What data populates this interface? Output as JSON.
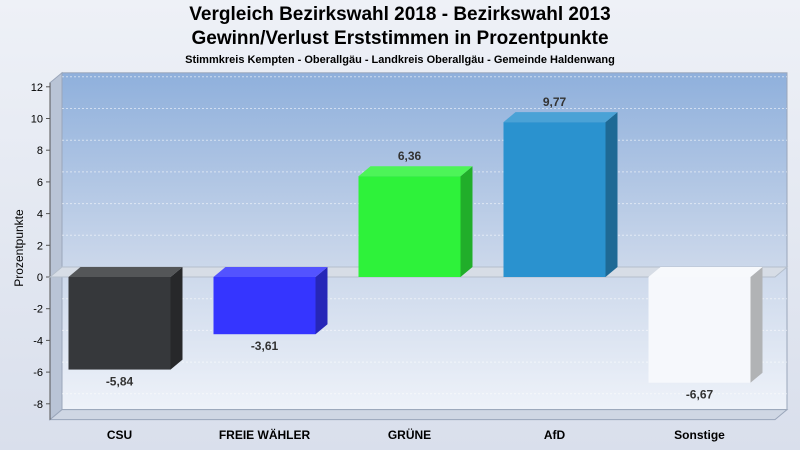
{
  "chart_data": {
    "type": "bar",
    "title": "Vergleich Bezirkswahl 2018 - Bezirkswahl 2013",
    "subtitle": "Gewinn/Verlust Erststimmen in Prozentpunkte",
    "caption": "Stimmkreis Kempten - Oberallgäu - Landkreis Oberallgäu - Gemeinde Haldenwang",
    "ylabel": "Prozentpunkte",
    "ylim": [
      -9,
      12
    ],
    "yticks": [
      12,
      10,
      8,
      6,
      4,
      2,
      0,
      -2,
      -4,
      -6,
      -8
    ],
    "categories": [
      "CSU",
      "FREIE WÄHLER",
      "GRÜNE",
      "AfD",
      "Sonstige"
    ],
    "values": [
      -5.84,
      -3.61,
      6.36,
      9.77,
      -6.67
    ],
    "value_labels": [
      "-5,84",
      "-3,61",
      "6,36",
      "9,77",
      "-6,67"
    ],
    "colors": [
      "#36383b",
      "#3535ff",
      "#2ef23a",
      "#2a92cf",
      "#f6f8fc"
    ],
    "grid": true,
    "legend": "none"
  }
}
